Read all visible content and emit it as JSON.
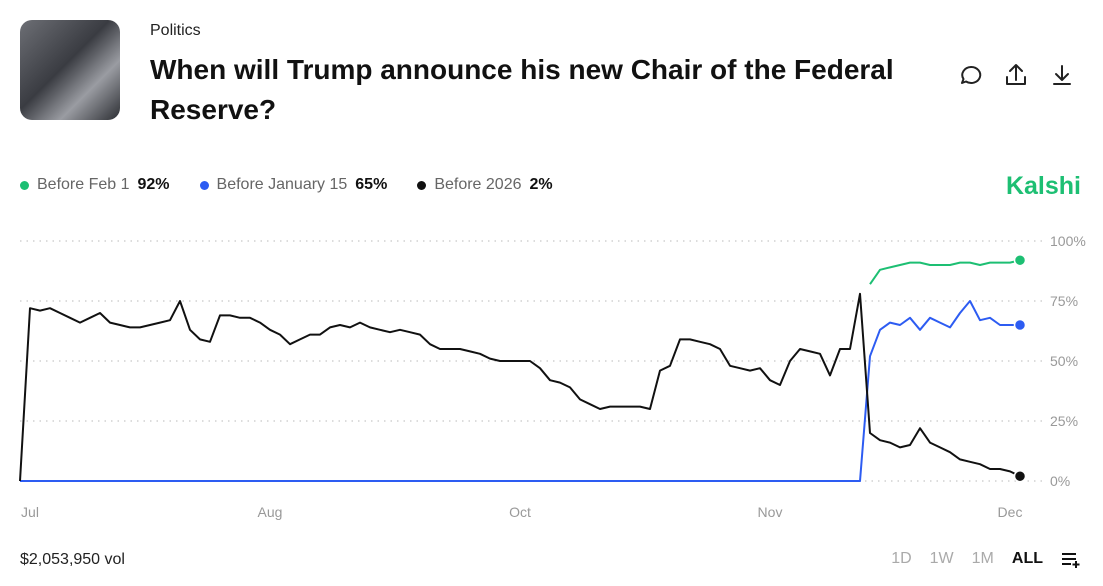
{
  "header": {
    "category": "Politics",
    "title": "When will Trump announce his new Chair of the Federal Reserve?"
  },
  "brand": "Kalshi",
  "volume": "$2,053,950 vol",
  "ranges": [
    "1D",
    "1W",
    "1M",
    "ALL"
  ],
  "chart_data": {
    "type": "line",
    "x": [
      0,
      1,
      2,
      3,
      4,
      5,
      6,
      7,
      8,
      9,
      10,
      11,
      12,
      13,
      14,
      15,
      16,
      17,
      18,
      19,
      20,
      21,
      22,
      23,
      24,
      25,
      26,
      27,
      28,
      29,
      30,
      31,
      32,
      33,
      34,
      35,
      36,
      37,
      38,
      39,
      40,
      41,
      42,
      43,
      44,
      45,
      46,
      47,
      48,
      49,
      50,
      51,
      52,
      53,
      54,
      55,
      56,
      57,
      58,
      59,
      60,
      61,
      62,
      63,
      64,
      65,
      66,
      67,
      68,
      69,
      70,
      71,
      72,
      73,
      74,
      75,
      76,
      77,
      78,
      79,
      80,
      81,
      82,
      83,
      84,
      85,
      86,
      87,
      88,
      89,
      90,
      91,
      92,
      93,
      94,
      95,
      96,
      97,
      98,
      99,
      100
    ],
    "series": [
      {
        "name": "Before Feb 1",
        "legend_label": "92%",
        "color": "#1dbf73",
        "values": [
          null,
          null,
          null,
          null,
          null,
          null,
          null,
          null,
          null,
          null,
          null,
          null,
          null,
          null,
          null,
          null,
          null,
          null,
          null,
          null,
          null,
          null,
          null,
          null,
          null,
          null,
          null,
          null,
          null,
          null,
          null,
          null,
          null,
          null,
          null,
          null,
          null,
          null,
          null,
          null,
          null,
          null,
          null,
          null,
          null,
          null,
          null,
          null,
          null,
          null,
          null,
          null,
          null,
          null,
          null,
          null,
          null,
          null,
          null,
          null,
          null,
          null,
          null,
          null,
          null,
          null,
          null,
          null,
          null,
          null,
          null,
          null,
          null,
          null,
          null,
          null,
          null,
          null,
          null,
          null,
          null,
          null,
          null,
          null,
          null,
          82,
          88,
          89,
          90,
          91,
          91,
          90,
          90,
          90,
          91,
          91,
          90,
          91,
          91,
          91,
          92
        ]
      },
      {
        "name": "Before January 15",
        "legend_label": "65%",
        "color": "#2d5cf2",
        "values": [
          0,
          0,
          0,
          0,
          0,
          0,
          0,
          0,
          0,
          0,
          0,
          0,
          0,
          0,
          0,
          0,
          0,
          0,
          0,
          0,
          0,
          0,
          0,
          0,
          0,
          0,
          0,
          0,
          0,
          0,
          0,
          0,
          0,
          0,
          0,
          0,
          0,
          0,
          0,
          0,
          0,
          0,
          0,
          0,
          0,
          0,
          0,
          0,
          0,
          0,
          0,
          0,
          0,
          0,
          0,
          0,
          0,
          0,
          0,
          0,
          0,
          0,
          0,
          0,
          0,
          0,
          0,
          0,
          0,
          0,
          0,
          0,
          0,
          0,
          0,
          0,
          0,
          0,
          0,
          0,
          0,
          0,
          0,
          0,
          0,
          52,
          63,
          66,
          65,
          68,
          63,
          68,
          66,
          64,
          70,
          75,
          67,
          68,
          65,
          65,
          65
        ]
      },
      {
        "name": "Before 2026",
        "legend_label": "2%",
        "color": "#111111",
        "values": [
          0,
          72,
          71,
          72,
          70,
          68,
          66,
          68,
          70,
          66,
          65,
          64,
          64,
          65,
          66,
          67,
          75,
          63,
          59,
          58,
          69,
          69,
          68,
          68,
          66,
          63,
          61,
          57,
          59,
          61,
          61,
          64,
          65,
          64,
          66,
          64,
          63,
          62,
          63,
          62,
          61,
          57,
          55,
          55,
          55,
          54,
          53,
          51,
          50,
          50,
          50,
          50,
          47,
          42,
          41,
          39,
          34,
          32,
          30,
          31,
          31,
          31,
          31,
          30,
          46,
          48,
          59,
          59,
          58,
          57,
          55,
          48,
          47,
          46,
          47,
          42,
          40,
          50,
          55,
          54,
          53,
          44,
          55,
          55,
          78,
          20,
          17,
          16,
          14,
          15,
          22,
          16,
          14,
          12,
          9,
          8,
          7,
          5,
          5,
          4,
          2
        ]
      }
    ],
    "xlim": [
      0,
      100
    ],
    "xticks": [
      {
        "value": 1,
        "label": "Jul"
      },
      {
        "value": 25,
        "label": "Aug"
      },
      {
        "value": 50,
        "label": "Oct"
      },
      {
        "value": 75,
        "label": "Nov"
      },
      {
        "value": 99,
        "label": "Dec"
      }
    ],
    "ylim": [
      0,
      100
    ],
    "yticks": [
      {
        "value": 0,
        "label": "0%"
      },
      {
        "value": 25,
        "label": "25%"
      },
      {
        "value": 50,
        "label": "50%"
      },
      {
        "value": 75,
        "label": "75%"
      },
      {
        "value": 100,
        "label": "100%"
      }
    ],
    "grid": true
  }
}
